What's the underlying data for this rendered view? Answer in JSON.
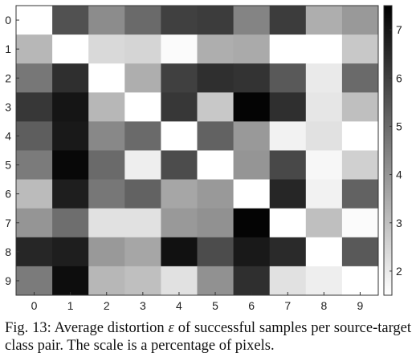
{
  "chart_data": {
    "type": "heatmap",
    "colormap": "gray (reversed): high values dark, low values light",
    "x_ticks": [
      "0",
      "1",
      "2",
      "3",
      "4",
      "5",
      "6",
      "7",
      "8",
      "9"
    ],
    "y_ticks": [
      "0",
      "1",
      "2",
      "3",
      "4",
      "5",
      "6",
      "7",
      "8",
      "9"
    ],
    "values": [
      [
        1.2,
        5.6,
        4.2,
        5.0,
        6.0,
        6.1,
        4.4,
        6.1,
        3.4,
        3.9
      ],
      [
        3.2,
        1.1,
        2.4,
        2.5,
        1.6,
        3.4,
        3.5,
        1.2,
        1.4,
        2.8
      ],
      [
        4.7,
        6.4,
        1.1,
        3.4,
        6.0,
        6.4,
        6.3,
        5.4,
        2.0,
        5.0
      ],
      [
        6.2,
        7.0,
        3.2,
        1.1,
        6.2,
        2.8,
        7.4,
        6.4,
        2.1,
        3.0
      ],
      [
        5.3,
        6.9,
        4.3,
        5.0,
        1.1,
        5.2,
        3.9,
        1.8,
        2.2,
        1.4
      ],
      [
        4.6,
        7.3,
        5.0,
        1.9,
        5.7,
        1.1,
        4.0,
        5.8,
        1.7,
        2.6
      ],
      [
        3.1,
        6.8,
        4.7,
        5.2,
        3.6,
        3.9,
        1.1,
        6.6,
        1.8,
        5.2
      ],
      [
        4.0,
        4.9,
        2.2,
        2.2,
        3.9,
        4.1,
        7.4,
        1.1,
        3.0,
        1.6
      ],
      [
        6.6,
        6.8,
        3.9,
        3.6,
        7.1,
        5.7,
        6.9,
        6.5,
        1.1,
        5.4
      ],
      [
        4.6,
        7.2,
        3.2,
        3.0,
        2.2,
        4.1,
        6.4,
        2.2,
        1.9,
        1.2
      ]
    ],
    "colorbar": {
      "ticks": [
        "2",
        "3",
        "4",
        "5",
        "6",
        "7"
      ],
      "range": [
        1.5,
        7.5
      ]
    }
  },
  "caption": {
    "prefix": "Fig. 13: Average distortion ",
    "symbol": "ε",
    "suffix": " of successful samples per source-target class pair. The scale is a percentage of pixels."
  }
}
